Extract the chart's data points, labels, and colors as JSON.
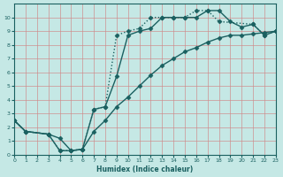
{
  "xlabel": "Humidex (Indice chaleur)",
  "xlim": [
    0,
    23
  ],
  "ylim": [
    0,
    11
  ],
  "xticks": [
    0,
    1,
    2,
    3,
    4,
    5,
    6,
    7,
    8,
    9,
    10,
    11,
    12,
    13,
    14,
    15,
    16,
    17,
    18,
    19,
    20,
    21,
    22,
    23
  ],
  "yticks": [
    0,
    1,
    2,
    3,
    4,
    5,
    6,
    7,
    8,
    9,
    10
  ],
  "background_color": "#c5e8e5",
  "grid_color": "#d08888",
  "line_color": "#1a6060",
  "line_width": 1.0,
  "marker": "D",
  "marker_size": 2.5,
  "curve1_x": [
    0,
    1,
    3,
    4,
    5,
    6,
    7,
    8,
    9,
    10,
    11,
    12,
    13,
    14,
    15,
    16,
    17,
    18,
    21,
    22,
    23
  ],
  "curve1_y": [
    2.5,
    1.7,
    1.5,
    0.3,
    0.3,
    0.4,
    3.3,
    3.5,
    8.7,
    9.0,
    9.2,
    10.0,
    10.0,
    10.0,
    10.0,
    10.5,
    10.5,
    9.7,
    9.5,
    8.7,
    9.0
  ],
  "curve2_x": [
    0,
    1,
    3,
    4,
    5,
    6,
    7,
    8,
    9,
    10,
    11,
    12,
    13,
    14,
    15,
    16,
    17,
    18,
    19,
    20,
    21,
    22,
    23
  ],
  "curve2_y": [
    2.5,
    1.7,
    1.5,
    0.3,
    0.3,
    0.4,
    3.3,
    3.5,
    5.7,
    8.7,
    9.0,
    9.2,
    10.0,
    10.0,
    10.0,
    10.0,
    10.5,
    10.5,
    9.7,
    9.3,
    9.5,
    8.7,
    9.0
  ],
  "curve3_x": [
    0,
    1,
    3,
    4,
    5,
    6,
    7,
    8,
    9,
    10,
    11,
    12,
    13,
    14,
    15,
    16,
    17,
    18,
    19,
    20,
    21,
    22,
    23
  ],
  "curve3_y": [
    2.5,
    1.7,
    1.5,
    1.2,
    0.3,
    0.4,
    1.7,
    2.5,
    3.5,
    4.2,
    5.0,
    5.8,
    6.5,
    7.0,
    7.5,
    7.8,
    8.2,
    8.5,
    8.7,
    8.7,
    8.8,
    8.9,
    9.0
  ]
}
